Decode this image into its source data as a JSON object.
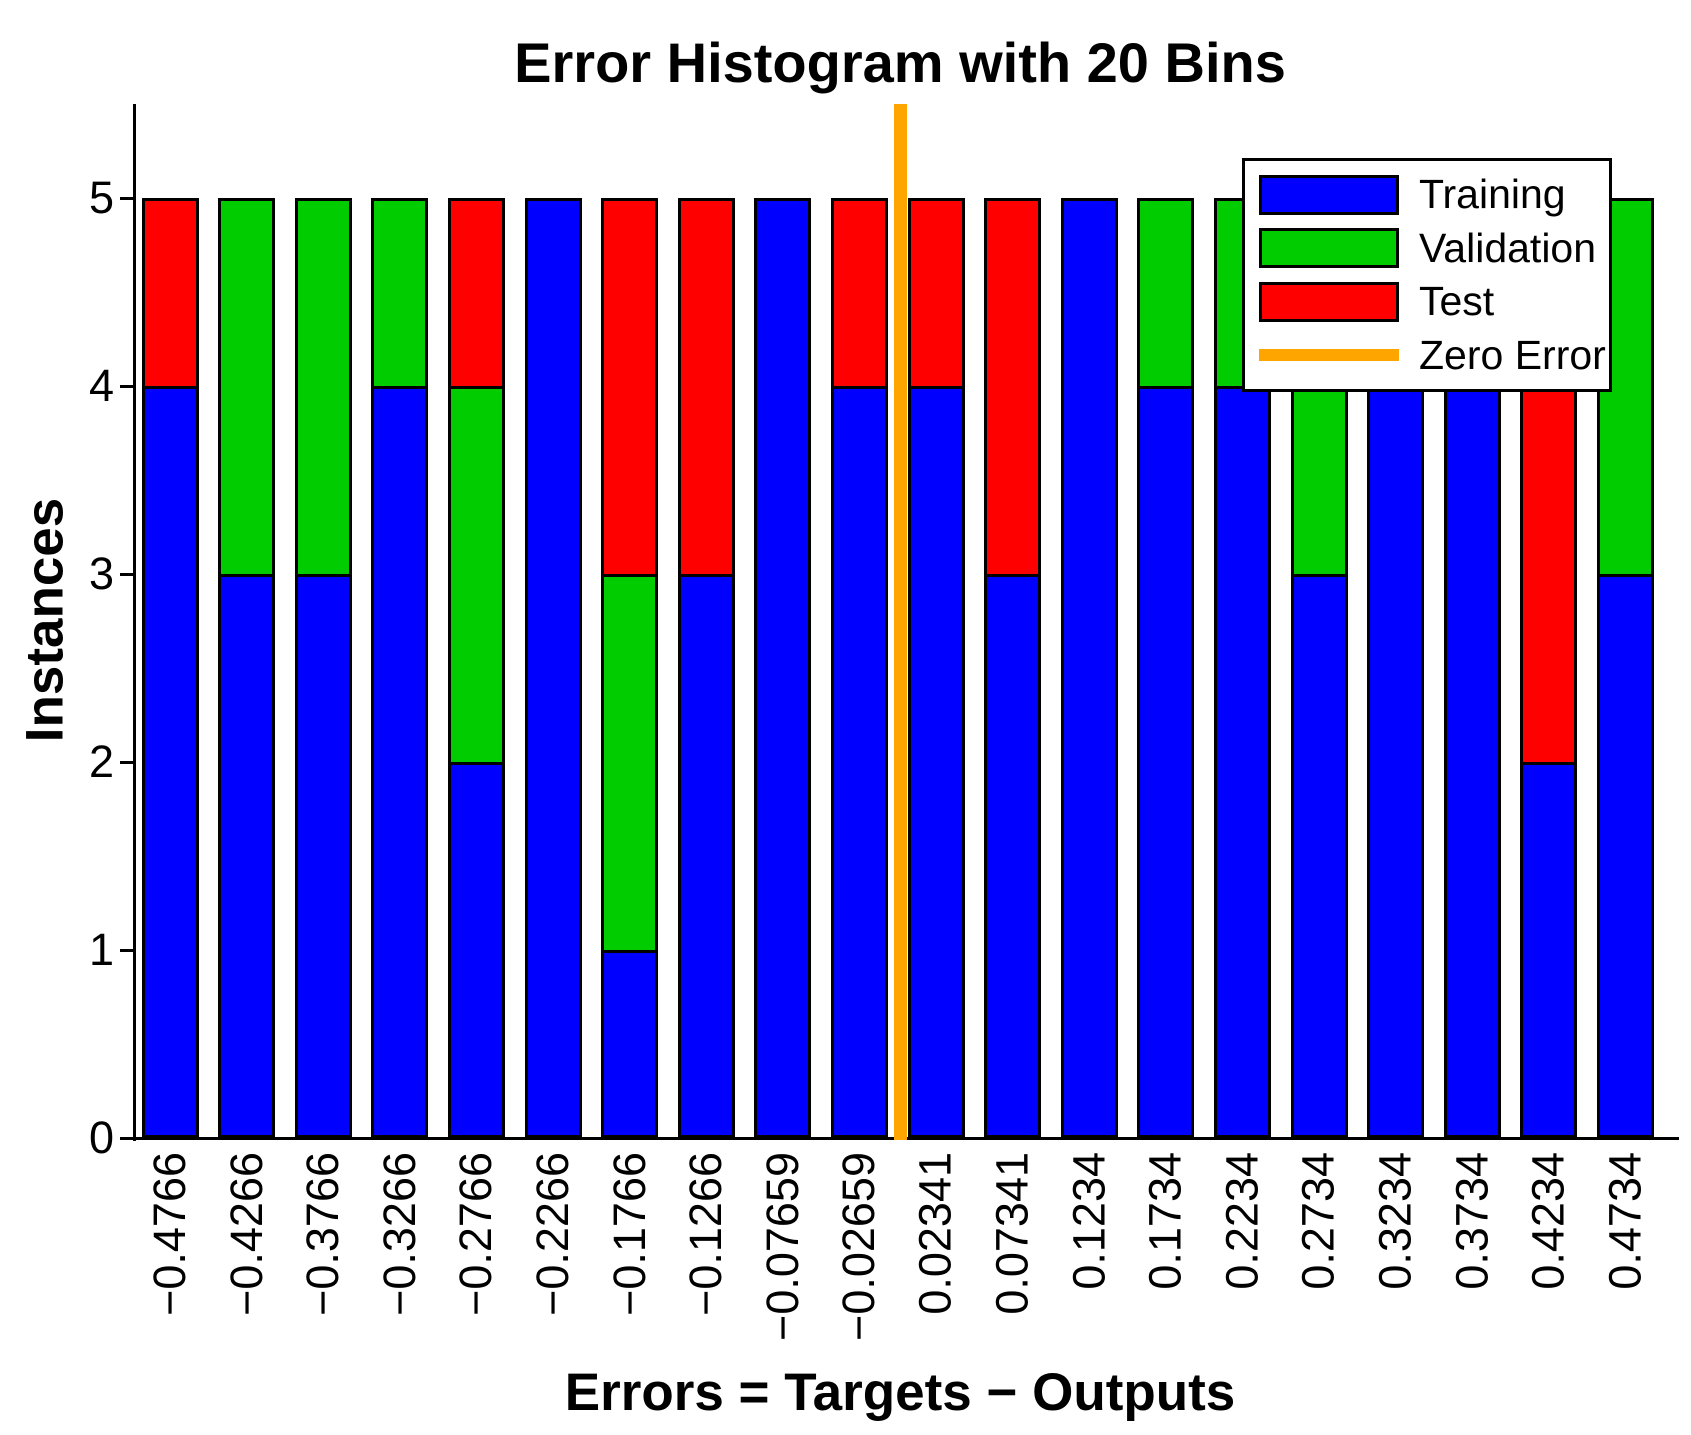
{
  "title": "Error Histogram with 20 Bins",
  "ylabel": "Instances",
  "xlabel": "Errors = Targets − Outputs",
  "colors": {
    "training": "#0000FF",
    "validation": "#00CC00",
    "test": "#FF0000",
    "zero_error": "#FFA500",
    "bar_edge": "#000000",
    "background": "#FFFFFF",
    "text": "#000000"
  },
  "legend": {
    "position": "top-right",
    "items": [
      {
        "label": "Training",
        "color": "#0000FF",
        "type": "patch"
      },
      {
        "label": "Validation",
        "color": "#00CC00",
        "type": "patch"
      },
      {
        "label": "Test",
        "color": "#FF0000",
        "type": "patch"
      },
      {
        "label": "Zero Error",
        "color": "#FFA500",
        "type": "line"
      }
    ]
  },
  "chart_data": {
    "type": "bar",
    "stacked": true,
    "title": "Error Histogram with 20 Bins",
    "xlabel": "Errors = Targets − Outputs",
    "ylabel": "Instances",
    "grid": false,
    "bin_width": 0.05,
    "categories": [
      -0.4766,
      -0.4266,
      -0.3766,
      -0.3266,
      -0.2766,
      -0.2266,
      -0.1766,
      -0.1266,
      -0.07659,
      -0.02659,
      0.02341,
      0.07341,
      0.1234,
      0.1734,
      0.2234,
      0.2734,
      0.3234,
      0.3734,
      0.4234,
      0.4734
    ],
    "category_labels": [
      "−0.4766",
      "−0.4266",
      "−0.3766",
      "−0.3266",
      "−0.2766",
      "−0.2266",
      "−0.1766",
      "−0.1266",
      "−0.07659",
      "−0.02659",
      "0.02341",
      "0.07341",
      "0.1234",
      "0.1734",
      "0.2234",
      "0.2734",
      "0.3234",
      "0.3734",
      "0.4234",
      "0.4734"
    ],
    "series": [
      {
        "name": "Training",
        "color": "#0000FF",
        "values": [
          4,
          3,
          3,
          4,
          2,
          5,
          1,
          3,
          5,
          4,
          4,
          3,
          5,
          4,
          4,
          3,
          5,
          5,
          2,
          3
        ]
      },
      {
        "name": "Validation",
        "color": "#00CC00",
        "values": [
          0,
          2,
          2,
          1,
          2,
          0,
          2,
          0,
          0,
          0,
          0,
          0,
          0,
          1,
          1,
          2,
          0,
          0,
          0,
          2
        ]
      },
      {
        "name": "Test",
        "color": "#FF0000",
        "values": [
          1,
          0,
          0,
          0,
          1,
          0,
          2,
          2,
          0,
          1,
          1,
          2,
          0,
          0,
          0,
          0,
          0,
          0,
          3,
          0
        ]
      }
    ],
    "yticks": [
      0,
      1,
      2,
      3,
      4,
      5
    ],
    "ylim": [
      0,
      5.5
    ],
    "zero_error_line": {
      "x": 0,
      "color": "#FFA500"
    }
  }
}
